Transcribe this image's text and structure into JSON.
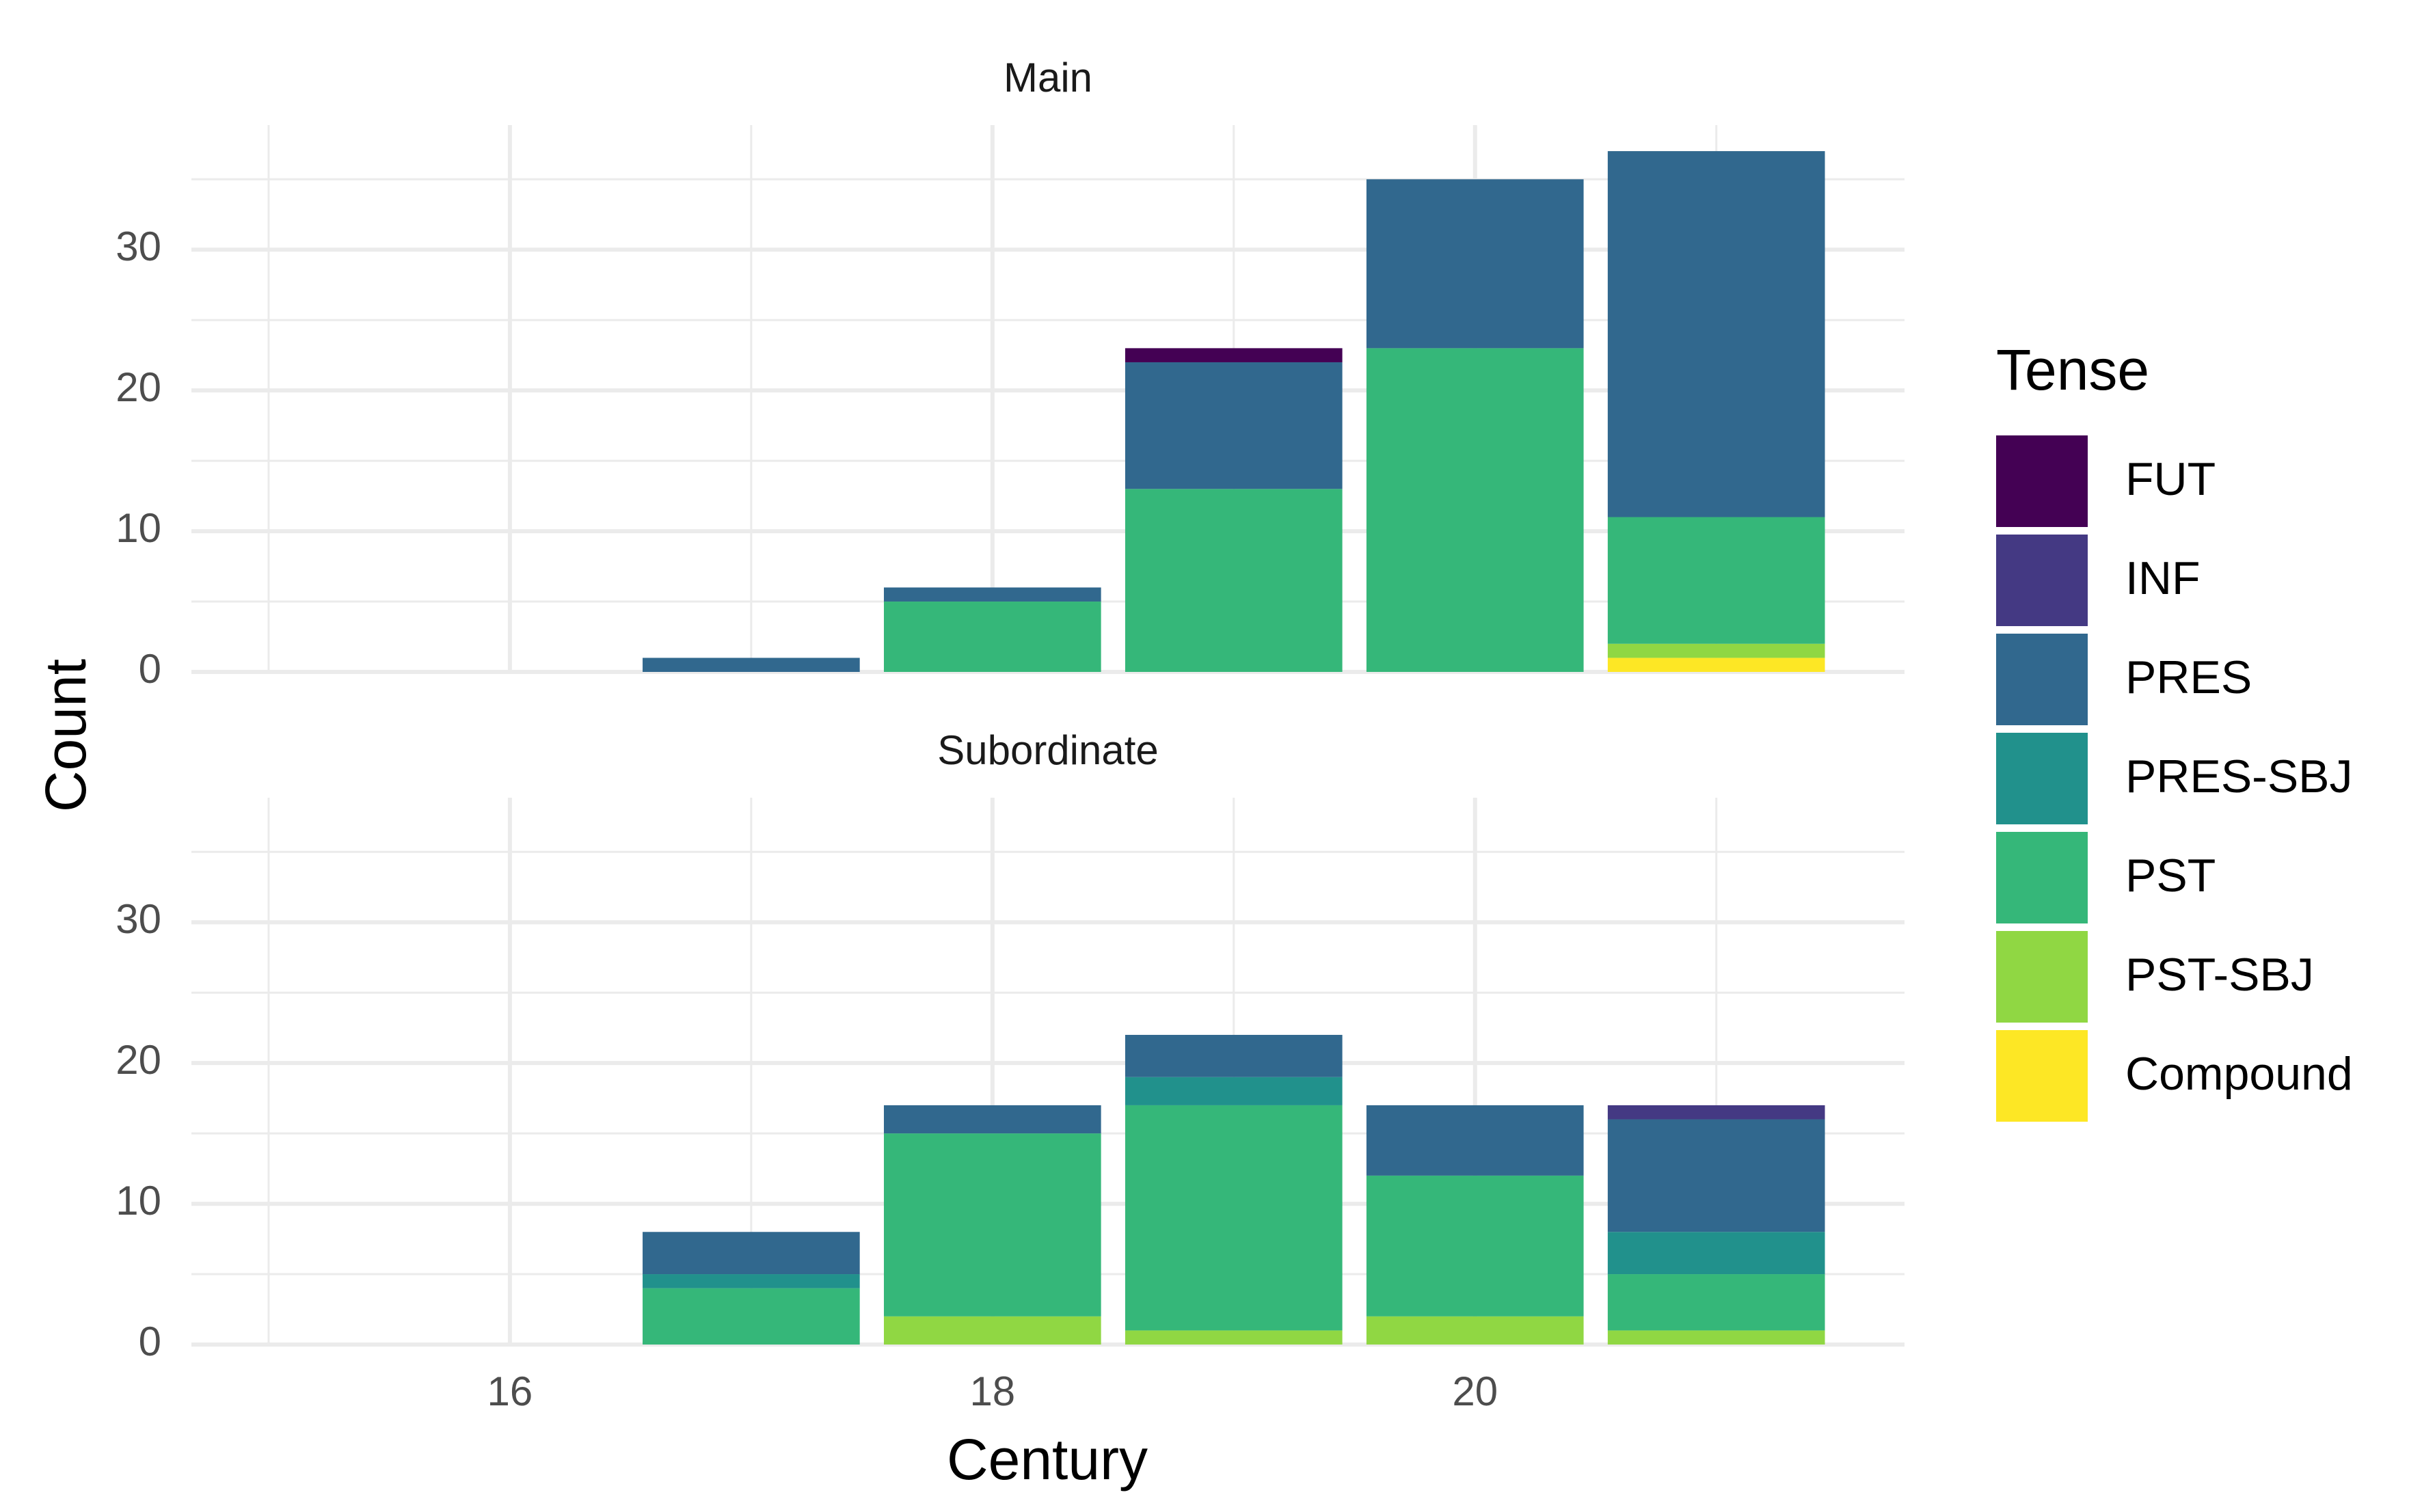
{
  "chart_data": {
    "type": "bar",
    "stacked": true,
    "facet": "vertical",
    "xlabel": "Century",
    "ylabel": "Count",
    "xlim": [
      14.68,
      21.78
    ],
    "ylim": [
      0,
      38.85
    ],
    "xticks": [
      16,
      18,
      20
    ],
    "yticks": [
      0,
      10,
      20,
      30
    ],
    "grid": true,
    "legend": {
      "title": "Tense",
      "position": "right",
      "entries": [
        {
          "name": "FUT",
          "color": "#440154"
        },
        {
          "name": "INF",
          "color": "#443983"
        },
        {
          "name": "PRES",
          "color": "#31688e"
        },
        {
          "name": "PRES-SBJ",
          "color": "#21918c"
        },
        {
          "name": "PST",
          "color": "#35b779"
        },
        {
          "name": "PST-SBJ",
          "color": "#90d743"
        },
        {
          "name": "Compound",
          "color": "#fde725"
        }
      ]
    },
    "categories": [
      16,
      17,
      18,
      19,
      20,
      21
    ],
    "panels": [
      {
        "title": "Main",
        "series": [
          {
            "name": "Compound",
            "values": [
              0,
              0,
              0,
              0,
              0,
              1
            ]
          },
          {
            "name": "PST-SBJ",
            "values": [
              0,
              0,
              0,
              0,
              0,
              1
            ]
          },
          {
            "name": "PST",
            "values": [
              0,
              0,
              5,
              13,
              23,
              9
            ]
          },
          {
            "name": "PRES-SBJ",
            "values": [
              0,
              0,
              0,
              0,
              0,
              0
            ]
          },
          {
            "name": "PRES",
            "values": [
              0,
              1,
              1,
              9,
              12,
              26
            ]
          },
          {
            "name": "INF",
            "values": [
              0,
              0,
              0,
              0,
              0,
              0
            ]
          },
          {
            "name": "FUT",
            "values": [
              0,
              0,
              0,
              1,
              0,
              0
            ]
          }
        ]
      },
      {
        "title": "Subordinate",
        "series": [
          {
            "name": "Compound",
            "values": [
              0,
              0,
              0,
              0,
              0,
              0
            ]
          },
          {
            "name": "PST-SBJ",
            "values": [
              0,
              0,
              2,
              1,
              2,
              1
            ]
          },
          {
            "name": "PST",
            "values": [
              0,
              4,
              13,
              16,
              10,
              4
            ]
          },
          {
            "name": "PRES-SBJ",
            "values": [
              0,
              1,
              0,
              2,
              0,
              3
            ]
          },
          {
            "name": "PRES",
            "values": [
              0,
              3,
              2,
              3,
              5,
              8
            ]
          },
          {
            "name": "INF",
            "values": [
              0,
              0,
              0,
              0,
              0,
              1
            ]
          },
          {
            "name": "FUT",
            "values": [
              0,
              0,
              0,
              0,
              0,
              0
            ]
          }
        ]
      }
    ]
  }
}
